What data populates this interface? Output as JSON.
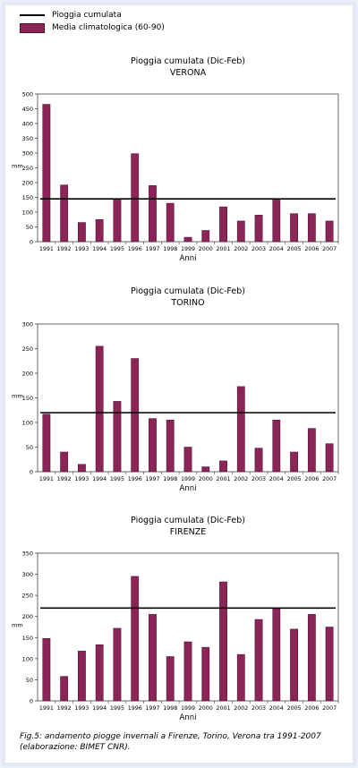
{
  "legend": {
    "line_label": "Pioggia cumulata",
    "bar_label": "Media climatologica (60-90)"
  },
  "colors": {
    "bar": "#8b2457",
    "bar_stroke": "#4a0f2c",
    "line": "#000000"
  },
  "chart_data": [
    {
      "type": "bar",
      "title": "Pioggia cumulata (Dic-Feb)",
      "subtitle": "VERONA",
      "xlabel": "Anni",
      "ylabel": "mm",
      "ylim": [
        0,
        500
      ],
      "yticks": [
        0,
        50,
        100,
        150,
        200,
        250,
        300,
        350,
        400,
        450,
        500
      ],
      "categories": [
        "1991",
        "1992",
        "1993",
        "1994",
        "1995",
        "1996",
        "1997",
        "1998",
        "1999",
        "2000",
        "2001",
        "2002",
        "2003",
        "2004",
        "2005",
        "2006",
        "2007"
      ],
      "values": [
        465,
        192,
        65,
        75,
        145,
        298,
        190,
        130,
        15,
        38,
        118,
        70,
        90,
        145,
        95,
        95,
        70
      ],
      "reference_line": 145
    },
    {
      "type": "bar",
      "title": "Pioggia cumulata (Dic-Feb)",
      "subtitle": "TORINO",
      "xlabel": "Anni",
      "ylabel": "mm",
      "ylim": [
        0,
        300
      ],
      "yticks": [
        0,
        50,
        100,
        150,
        200,
        250,
        300
      ],
      "categories": [
        "1991",
        "1992",
        "1993",
        "1994",
        "1995",
        "1996",
        "1997",
        "1998",
        "1999",
        "2000",
        "2001",
        "2002",
        "2003",
        "2004",
        "2005",
        "2006",
        "2007"
      ],
      "values": [
        117,
        40,
        15,
        255,
        143,
        230,
        108,
        105,
        50,
        10,
        22,
        173,
        48,
        105,
        40,
        88,
        57
      ],
      "reference_line": 120
    },
    {
      "type": "bar",
      "title": "Pioggia cumulata (Dic-Feb)",
      "subtitle": "FIRENZE",
      "xlabel": "Anni",
      "ylabel": "mm",
      "ylim": [
        0,
        350
      ],
      "yticks": [
        0,
        50,
        100,
        150,
        200,
        250,
        300,
        350
      ],
      "categories": [
        "1991",
        "1992",
        "1993",
        "1994",
        "1995",
        "1996",
        "1997",
        "1998",
        "1999",
        "2000",
        "2001",
        "2002",
        "2003",
        "2004",
        "2005",
        "2006",
        "2007"
      ],
      "values": [
        148,
        58,
        118,
        133,
        172,
        295,
        205,
        105,
        140,
        127,
        282,
        110,
        193,
        220,
        170,
        205,
        175
      ],
      "reference_line": 220
    }
  ],
  "caption": {
    "line1": "Fig.5: andamento piogge invernali a Firenze, Torino, Verona tra 1991-2007",
    "line2": "(elaborazione: BIMET CNR)."
  }
}
